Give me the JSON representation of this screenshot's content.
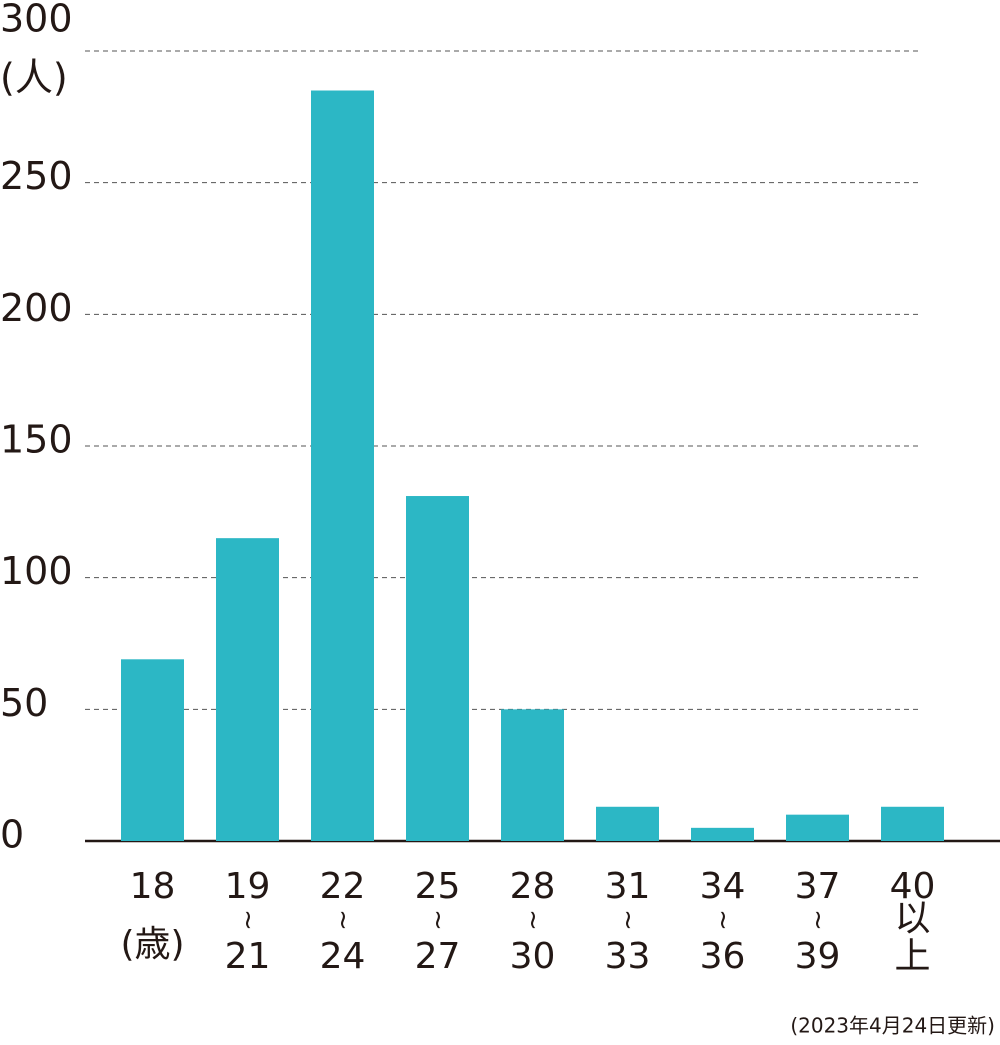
{
  "chart_data": {
    "type": "bar",
    "y_label": "(人)",
    "annotation": "(2023年4月24日更新)",
    "categories": [
      [
        "18",
        "(歳)"
      ],
      [
        "19",
        "~",
        "21"
      ],
      [
        "22",
        "~",
        "24"
      ],
      [
        "25",
        "~",
        "27"
      ],
      [
        "28",
        "~",
        "30"
      ],
      [
        "31",
        "~",
        "33"
      ],
      [
        "34",
        "~",
        "36"
      ],
      [
        "37",
        "~",
        "39"
      ],
      [
        "40",
        "以",
        "上"
      ]
    ],
    "values": [
      69,
      115,
      285,
      131,
      50,
      13,
      5,
      10,
      13
    ],
    "color": "#2cb7c5",
    "ylim": [
      0,
      300
    ],
    "yticks": [
      0,
      50,
      100,
      150,
      200,
      250,
      300
    ],
    "grid": true
  }
}
